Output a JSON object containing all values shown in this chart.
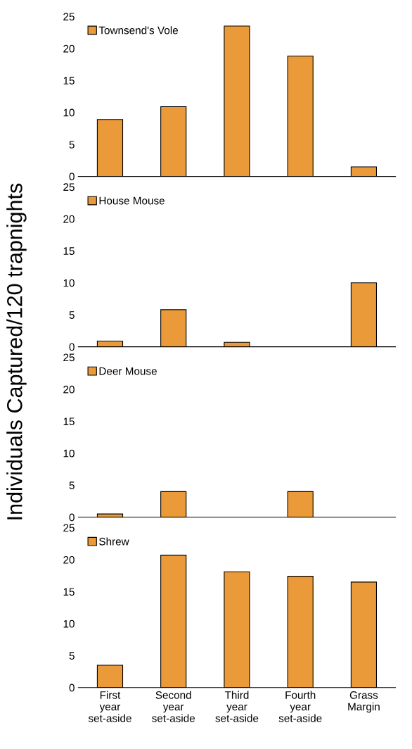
{
  "chart_data": [
    {
      "type": "bar",
      "ylabel": "Individuals Captured/120 trapnights",
      "categories": [
        null,
        null,
        null,
        null,
        null
      ],
      "series": [
        {
          "name": "Townsend's Vole",
          "color": "#eb9a3a",
          "values": [
            8.9,
            10.9,
            23.5,
            18.8,
            1.5
          ]
        }
      ],
      "ylim": [
        0,
        25
      ],
      "yticks": [
        0,
        5,
        10,
        15,
        20,
        25
      ],
      "legend": "top left",
      "tick_labels": "y"
    },
    {
      "type": "bar",
      "categories": [
        null,
        null,
        null,
        null,
        null
      ],
      "series": [
        {
          "name": "House Mouse",
          "color": "#eb9a3a",
          "values": [
            0.9,
            5.8,
            0.7,
            0,
            10.0
          ]
        }
      ],
      "ylim": [
        0,
        25
      ],
      "yticks": [
        0,
        5,
        10,
        15,
        20,
        25
      ],
      "legend": "top left",
      "tick_labels": "y"
    },
    {
      "type": "bar",
      "categories": [
        null,
        null,
        null,
        null,
        null
      ],
      "series": [
        {
          "name": "Deer Mouse",
          "color": "#eb9a3a",
          "values": [
            0.5,
            4.0,
            0,
            4.0,
            0
          ]
        }
      ],
      "ylim": [
        0,
        25
      ],
      "yticks": [
        0,
        5,
        10,
        15,
        20,
        25
      ],
      "legend": "top left",
      "tick_labels": "y"
    },
    {
      "type": "bar",
      "categories": [
        "First\nyear\nset-aside",
        "Second\nyear\nset-aside",
        "Third\nyear\nset-aside",
        "Fourth\nyear\nset-aside",
        "Grass\nMargin"
      ],
      "series": [
        {
          "name": "Shrew",
          "color": "#eb9a3a",
          "values": [
            3.5,
            20.7,
            18.1,
            17.4,
            16.5
          ]
        }
      ],
      "ylim": [
        0,
        25
      ],
      "yticks": [
        0,
        5,
        10,
        15,
        20,
        25
      ],
      "legend": "top left"
    }
  ]
}
